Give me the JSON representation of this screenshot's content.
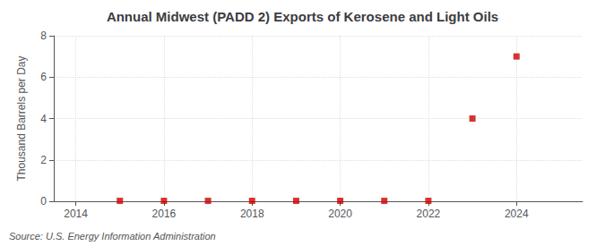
{
  "chart_data": {
    "type": "scatter",
    "title": "Annual Midwest (PADD 2) Exports of Kerosene and Light Oils",
    "ylabel": "Thousand Barrels per Day",
    "annotations": [
      "Source: U.S. Energy Information Administration"
    ],
    "x": [
      2015,
      2016,
      2017,
      2018,
      2019,
      2020,
      2021,
      2022,
      2023,
      2024
    ],
    "values": [
      0.02,
      0.02,
      0.02,
      0.02,
      0.02,
      0.02,
      0.02,
      0.02,
      4.0,
      7.0
    ],
    "color": "#cc0000",
    "marker": "square",
    "xlim": [
      2013.5,
      2025.5
    ],
    "xticks": [
      2014,
      2016,
      2018,
      2020,
      2022,
      2024
    ],
    "ylim": [
      0,
      8
    ],
    "yticks": [
      0,
      2,
      4,
      6,
      8
    ],
    "grid": true
  }
}
